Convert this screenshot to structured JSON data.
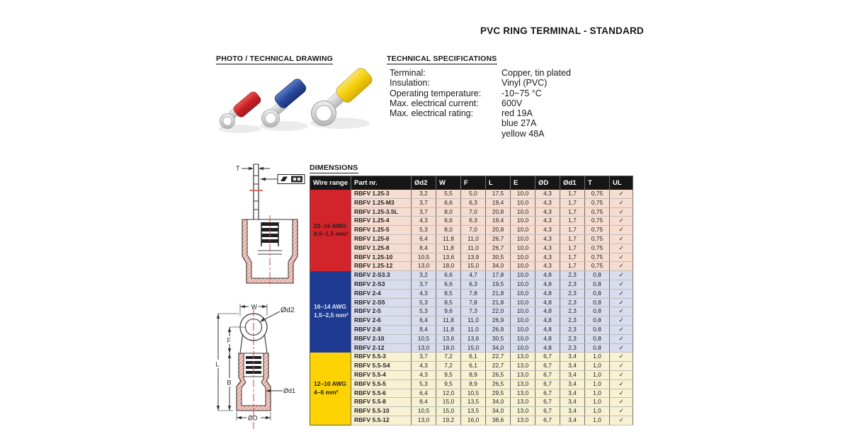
{
  "title": "PVC RING TERMINAL - STANDARD",
  "headings": {
    "photo": "PHOTO / TECHNICAL DRAWING",
    "specs": "TECHNICAL SPECIFICATIONS",
    "dimensions": "DIMENSIONS"
  },
  "specs": [
    {
      "label": "Terminal:",
      "value": "Copper, tin plated"
    },
    {
      "label": "Insulation:",
      "value": "Vinyl (PVC)"
    },
    {
      "label": "Operating temperature:",
      "value": "-10~75 °C"
    },
    {
      "label": "Max. electrical current:",
      "value": "600V"
    },
    {
      "label": "Max. electrical rating:",
      "value": "red 19A"
    },
    {
      "label": "",
      "value": "blue 27A"
    },
    {
      "label": "",
      "value": "yellow 48A"
    }
  ],
  "table": {
    "columns": [
      "Wire range",
      "Part nr.",
      "Ød2",
      "W",
      "F",
      "L",
      "E",
      "ØD",
      "Ød1",
      "T",
      "UL"
    ],
    "check_mark": "✓",
    "groups": [
      {
        "wire_range_lines": [
          "22–16 AWG",
          "0,5–1,5 mm²"
        ],
        "group_color": "#d4242b",
        "label_color": "#1f1f1f",
        "row_bg": "#f7ddd0",
        "rows": [
          [
            "RBFV 1.25-3",
            "3,2",
            "5,5",
            "5,0",
            "17,5",
            "10,0",
            "4,3",
            "1,7",
            "0,75"
          ],
          [
            "RBFV 1.25-M3",
            "3,7",
            "6,6",
            "6,3",
            "19,4",
            "10,0",
            "4,3",
            "1,7",
            "0,75"
          ],
          [
            "RBFV 1.25-3.5L",
            "3,7",
            "8,0",
            "7,0",
            "20,8",
            "10,0",
            "4,3",
            "1,7",
            "0,75"
          ],
          [
            "RBFV 1.25-4",
            "4,3",
            "6,6",
            "6,3",
            "19,4",
            "10,0",
            "4,3",
            "1,7",
            "0,75"
          ],
          [
            "RBFV 1.25-5",
            "5,3",
            "8,0",
            "7,0",
            "20,8",
            "10,0",
            "4,3",
            "1,7",
            "0,75"
          ],
          [
            "RBFV 1.25-6",
            "6,4",
            "11,8",
            "11,0",
            "26,7",
            "10,0",
            "4,3",
            "1,7",
            "0,75"
          ],
          [
            "RBFV 1.25-8",
            "8,4",
            "11,8",
            "11,0",
            "26,7",
            "10,0",
            "4,3",
            "1,7",
            "0,75"
          ],
          [
            "RBFV 1.25-10",
            "10,5",
            "13,6",
            "13,9",
            "30,5",
            "10,0",
            "4,3",
            "1,7",
            "0,75"
          ],
          [
            "RBFV 1.25-12",
            "13,0",
            "18,0",
            "15,0",
            "34,0",
            "10,0",
            "4,3",
            "1,7",
            "0,75"
          ]
        ]
      },
      {
        "wire_range_lines": [
          "16–14 AWG",
          "1,5–2,5 mm²"
        ],
        "group_color": "#1e3a93",
        "label_color": "#e2e6f0",
        "row_bg": "#d9dcec",
        "rows": [
          [
            "RBFV 2-S3.3",
            "3,2",
            "6,6",
            "4,7",
            "17,8",
            "10,0",
            "4,8",
            "2,3",
            "0,8"
          ],
          [
            "RBFV 2-S3",
            "3,7",
            "6,6",
            "6,3",
            "19,5",
            "10,0",
            "4,8",
            "2,3",
            "0,8"
          ],
          [
            "RBFV 2-4",
            "4,3",
            "8,5",
            "7,8",
            "21,8",
            "10,0",
            "4,8",
            "2,3",
            "0,8"
          ],
          [
            "RBFV 2-S5",
            "5,3",
            "8,5",
            "7,8",
            "21,8",
            "10,0",
            "4,8",
            "2,3",
            "0,8"
          ],
          [
            "RBFV 2-5",
            "5,3",
            "9,6",
            "7,3",
            "22,0",
            "10,0",
            "4,8",
            "2,3",
            "0,8"
          ],
          [
            "RBFV 2-6",
            "6,4",
            "11,8",
            "11,0",
            "26,9",
            "10,0",
            "4,8",
            "2,3",
            "0,8"
          ],
          [
            "RBFV 2-8",
            "8,4",
            "11,8",
            "11,0",
            "26,9",
            "10,0",
            "4,8",
            "2,3",
            "0,8"
          ],
          [
            "RBFV 2-10",
            "10,5",
            "13,6",
            "13,6",
            "30,5",
            "10,0",
            "4,8",
            "2,3",
            "0,8"
          ],
          [
            "RBFV 2-12",
            "13,0",
            "18,0",
            "15,0",
            "34,0",
            "10,0",
            "4,8",
            "2,3",
            "0,8"
          ]
        ]
      },
      {
        "wire_range_lines": [
          "12–10 AWG",
          "4–6 mm²"
        ],
        "group_color": "#fdd304",
        "label_color": "#1f1f1f",
        "row_bg": "#f8f2d3",
        "rows": [
          [
            "RBFV 5.5-3",
            "3,7",
            "7,2",
            "6,1",
            "22,7",
            "13,0",
            "6,7",
            "3,4",
            "1,0"
          ],
          [
            "RBFV 5.5-S4",
            "4,3",
            "7,2",
            "6,1",
            "22,7",
            "13,0",
            "6,7",
            "3,4",
            "1,0"
          ],
          [
            "RBFV 5.5-4",
            "4,3",
            "9,5",
            "8,9",
            "26,5",
            "13,0",
            "6,7",
            "3,4",
            "1,0"
          ],
          [
            "RBFV 5.5-5",
            "5,3",
            "9,5",
            "8,9",
            "26,5",
            "13,0",
            "6,7",
            "3,4",
            "1,0"
          ],
          [
            "RBFV 5.5-6",
            "6,4",
            "12,0",
            "10,5",
            "29,5",
            "13,0",
            "6,7",
            "3,4",
            "1,0"
          ],
          [
            "RBFV 5.5-8",
            "8,4",
            "15,0",
            "13,5",
            "34,0",
            "13,0",
            "6,7",
            "3,4",
            "1,0"
          ],
          [
            "RBFV 5.5-10",
            "10,5",
            "15,0",
            "13,5",
            "34,0",
            "13,0",
            "6,7",
            "3,4",
            "1,0"
          ],
          [
            "RBFV 5.5-12",
            "13,0",
            "19,2",
            "16,0",
            "38,6",
            "13,0",
            "6,7",
            "3,4",
            "1,0"
          ]
        ]
      }
    ]
  },
  "drawings": {
    "side_view": {
      "t": "T"
    },
    "front_view": {
      "w": "W",
      "d2": "Ød2",
      "f": "F",
      "l": "L",
      "b": "B",
      "d1": "Ød1",
      "d": "ØD"
    }
  },
  "colors": {
    "red_terminal": "#d4242b",
    "blue_terminal": "#2a4aa0",
    "yellow_terminal": "#f7d308",
    "header_bg": "#161616"
  }
}
